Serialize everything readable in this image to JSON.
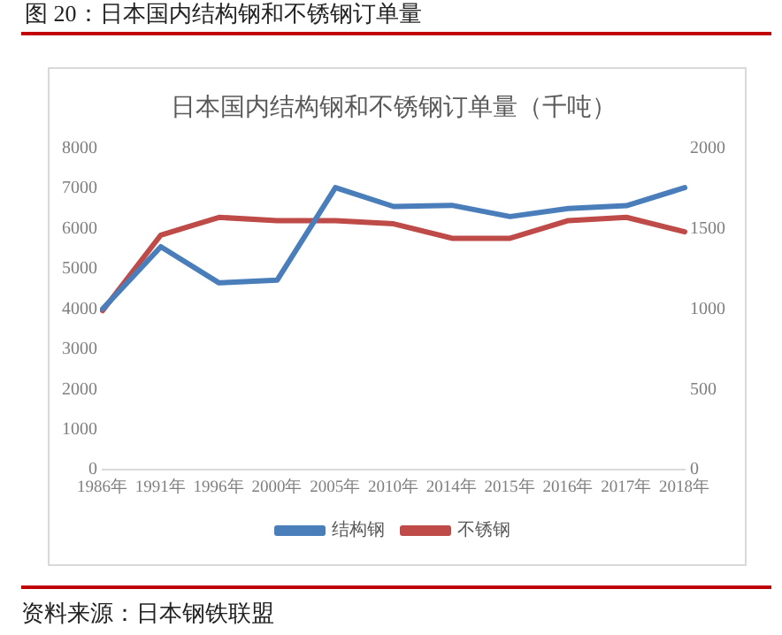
{
  "chart_data": {
    "type": "line",
    "title": "日本国内结构钢和不锈钢订单量（千吨）",
    "annotations": [
      "图 20：日本国内结构钢和不锈钢订单量",
      "资料来源：日本钢铁联盟"
    ],
    "categories": [
      "1986年",
      "1991年",
      "1996年",
      "2000年",
      "2005年",
      "2010年",
      "2014年",
      "2015年",
      "2016年",
      "2017年",
      "2018年"
    ],
    "series": [
      {
        "name": "结构钢",
        "color": "#4a7ebb",
        "values": [
          4000,
          5550,
          4650,
          4720,
          7020,
          6550,
          6580,
          6300,
          6500,
          6570,
          7020
        ]
      },
      {
        "name": "不锈钢",
        "color": "#be4b48",
        "axis": "y2",
        "values": [
          990,
          1460,
          1570,
          1550,
          1550,
          1530,
          1440,
          1440,
          1550,
          1570,
          1480
        ]
      }
    ],
    "ylim": [
      0,
      8000
    ],
    "yticks": [
      0,
      1000,
      2000,
      3000,
      4000,
      5000,
      6000,
      7000,
      8000
    ],
    "y2lim": [
      0,
      2000
    ],
    "y2ticks": [
      0,
      500,
      1000,
      1500,
      2000
    ],
    "grid": false,
    "legend": "bottom",
    "marker": "none",
    "line_style": "solid"
  }
}
